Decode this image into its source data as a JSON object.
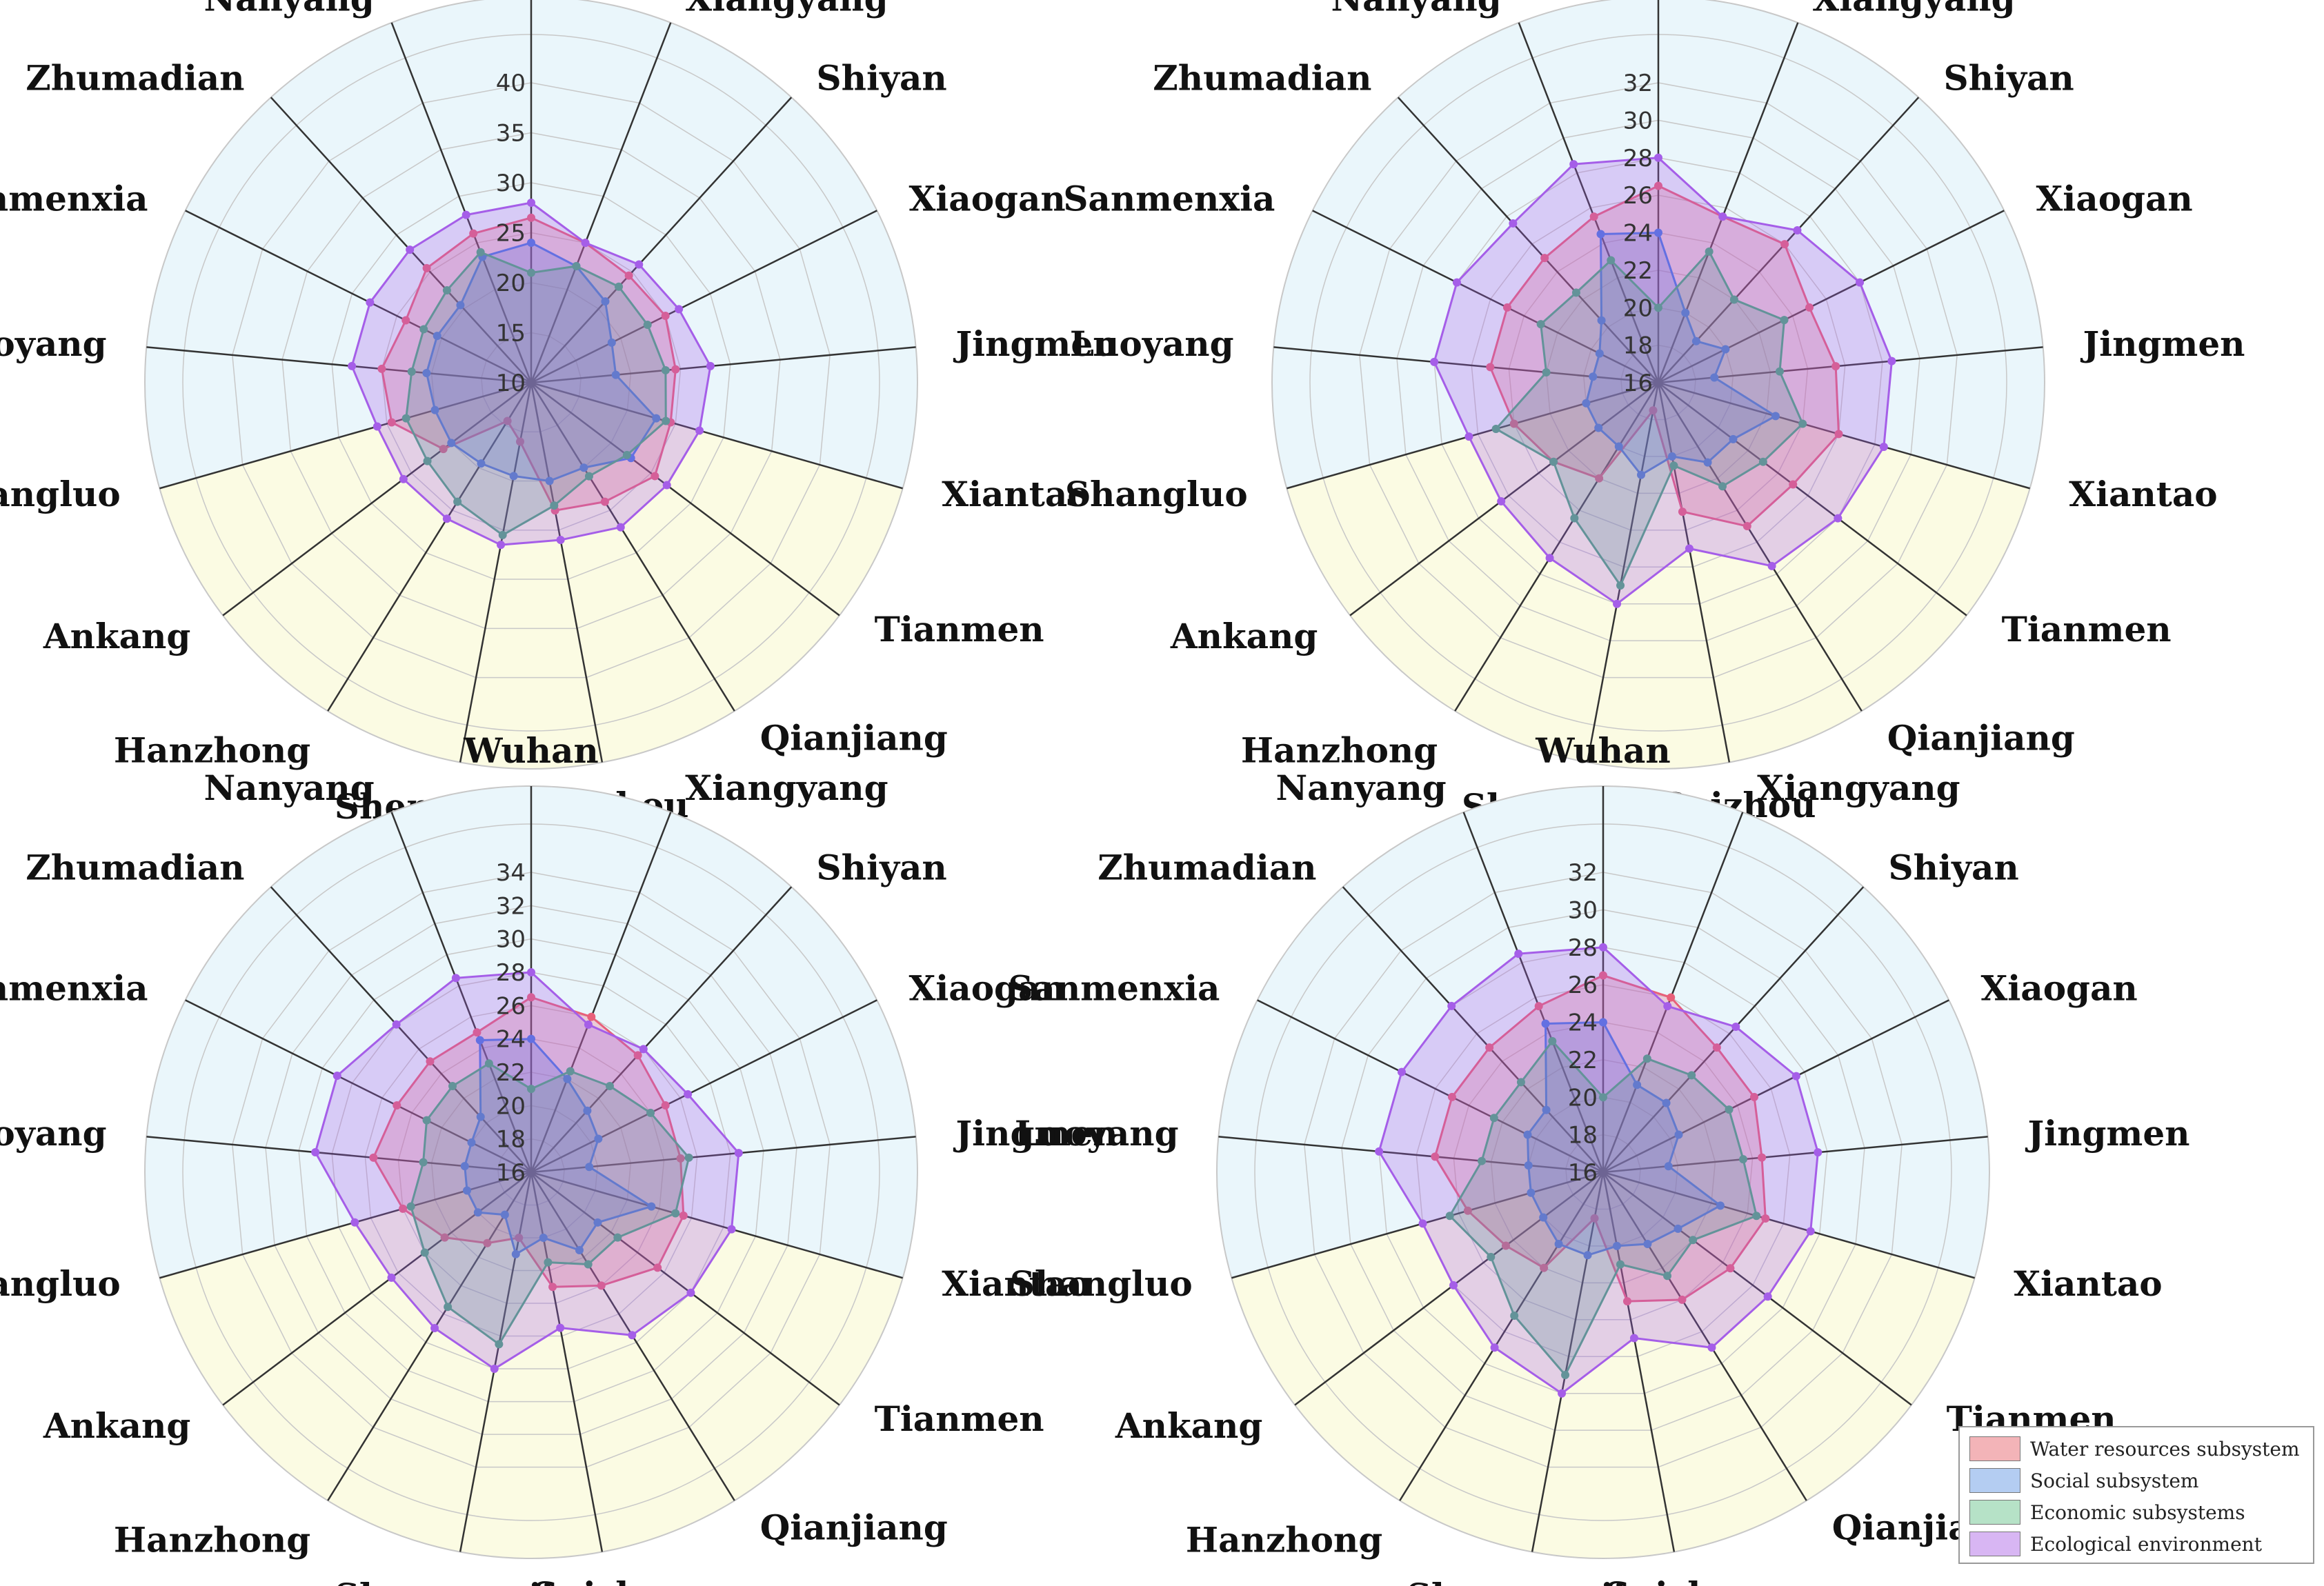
{
  "colors": {
    "water": "#e8607a",
    "social": "#4a78e0",
    "economic": "#4aa87a",
    "ecological": "#a55ee8",
    "blue_band": "#eaf6fb",
    "yellow_band": "#fbfbe3",
    "axis": "#333333",
    "grid": "#c8c8c8"
  },
  "legend": [
    {
      "name": "Water resources subsystem",
      "color": "#f3b4b8",
      "key": "water"
    },
    {
      "name": "Social subsystem",
      "color": "#b4cdf2",
      "key": "social"
    },
    {
      "name": "Economic subsystems",
      "color": "#b6e2c7",
      "key": "economic"
    },
    {
      "name": "Ecological environment",
      "color": "#d8b6f3",
      "key": "ecological"
    }
  ],
  "chart_data": [
    {
      "type": "radar",
      "categories": [
        "Wuhan",
        "Xiangyang",
        "Shiyan",
        "Xiaogan",
        "Jingmen",
        "Xiantao",
        "Tianmen",
        "Qianjiang",
        "Suizhou",
        "Shennongjia",
        "Hanzhong",
        "Ankang",
        "Shangluo",
        "Luoyang",
        "Sanmenxia",
        "Zhumadian",
        "Nanyang"
      ],
      "rlim": [
        10,
        40
      ],
      "ticks": [
        "10",
        "15",
        "20",
        "25",
        "30",
        "35",
        "40"
      ],
      "series": [
        {
          "name": "Water resources subsystem",
          "key": "water",
          "values": [
            26.5,
            25,
            24.5,
            25,
            24.5,
            24.5,
            25.5,
            24,
            23,
            16,
            14.5,
            21,
            24.5,
            25,
            24,
            25.5,
            26
          ]
        },
        {
          "name": "Social subsystem",
          "key": "social",
          "values": [
            24,
            22.5,
            21,
            19,
            18.5,
            23,
            22.5,
            20,
            20,
            19.5,
            19.5,
            20,
            20,
            20.5,
            20.5,
            20.5,
            23.5
          ]
        },
        {
          "name": "Economic subsystems",
          "key": "economic",
          "values": [
            21,
            22.5,
            23,
            23,
            23.5,
            24,
            22,
            21,
            22.5,
            25.5,
            24,
            23,
            23,
            22,
            22,
            22.5,
            24
          ]
        },
        {
          "name": "Ecological environment",
          "key": "ecological",
          "values": [
            28,
            25,
            26,
            26.5,
            28,
            27.5,
            27,
            27,
            26,
            26.5,
            26,
            26,
            26,
            28,
            28,
            28,
            28
          ]
        }
      ]
    },
    {
      "type": "radar",
      "categories": [
        "Wuhan",
        "Xiangyang",
        "Shiyan",
        "Xiaogan",
        "Jingmen",
        "Xiantao",
        "Tianmen",
        "Qianjiang",
        "Suizhou",
        "Shennongjia",
        "Hanzhong",
        "Ankang",
        "Shangluo",
        "Luoyang",
        "Sanmenxia",
        "Zhumadian",
        "Nanyang"
      ],
      "rlim": [
        16,
        32
      ],
      "ticks": [
        "16",
        "18",
        "20",
        "22",
        "24",
        "26",
        "28",
        "30",
        "32"
      ],
      "series": [
        {
          "name": "Water resources subsystem",
          "key": "water",
          "values": [
            26.5,
            25.5,
            26,
            25,
            25.5,
            26,
            25,
            25,
            23,
            17.5,
            22,
            23,
            24,
            25,
            25,
            25,
            25.5
          ]
        },
        {
          "name": "Social subsystem",
          "key": "social",
          "values": [
            24,
            20,
            19,
            20,
            19,
            22.5,
            21,
            21,
            20,
            21,
            20,
            20,
            20,
            19.5,
            19.5,
            20.5,
            24.5
          ]
        },
        {
          "name": "Economic subsystems",
          "key": "economic",
          "values": [
            20,
            23.5,
            22,
            23.5,
            22.5,
            24,
            23,
            22.5,
            20.5,
            27,
            24.5,
            23,
            25,
            22,
            23,
            22.5,
            23
          ]
        },
        {
          "name": "Ecological environment",
          "key": "ecological",
          "values": [
            28,
            25.5,
            27,
            28,
            28.5,
            28.5,
            28,
            27.5,
            25,
            28,
            27,
            26.5,
            26.5,
            28,
            28,
            27.5,
            28.5
          ]
        }
      ]
    },
    {
      "type": "radar",
      "categories": [
        "Wuhan",
        "Xiangyang",
        "Shiyan",
        "Xiaogan",
        "Jingmen",
        "Xiantao",
        "Tianmen",
        "Qianjiang",
        "Suizhou",
        "Shennongjia",
        "Hanzhong",
        "Ankang",
        "Shangluo",
        "Luoyang",
        "Sanmenxia",
        "Zhumadian",
        "Nanyang"
      ],
      "rlim": [
        16,
        34
      ],
      "ticks": [
        "16",
        "18",
        "20",
        "22",
        "24",
        "26",
        "28",
        "30",
        "32",
        "34"
      ],
      "series": [
        {
          "name": "Water resources subsystem",
          "key": "water",
          "values": [
            26.5,
            26,
            25.5,
            25,
            25,
            25.5,
            25.5,
            24,
            23,
            20,
            21,
            22.5,
            24,
            25.5,
            25,
            25,
            25
          ]
        },
        {
          "name": "Social subsystem",
          "key": "social",
          "values": [
            24,
            22,
            21,
            20.5,
            19.5,
            23.5,
            21,
            21.5,
            20,
            21,
            19,
            20,
            20,
            20,
            20,
            20.5,
            24.5
          ]
        },
        {
          "name": "Economic subsystems",
          "key": "economic",
          "values": [
            21,
            22.5,
            23,
            24,
            25.5,
            25,
            22.5,
            22.5,
            21.5,
            26.5,
            25.5,
            24,
            23.5,
            22.5,
            23,
            23,
            23
          ]
        },
        {
          "name": "Ecological environment",
          "key": "ecological",
          "values": [
            28,
            25.5,
            26,
            26.5,
            28.5,
            28.5,
            28,
            27.5,
            25.5,
            28,
            27,
            26.5,
            27,
            29,
            29,
            28,
            28.5
          ]
        }
      ]
    },
    {
      "type": "radar",
      "categories": [
        "Wuhan",
        "Xiangyang",
        "Shiyan",
        "Xiaogan",
        "Jingmen",
        "Xiantao",
        "Tianmen",
        "Qianjiang",
        "Suizhou",
        "Shennongjia",
        "Hanzhong",
        "Ankang",
        "Shangluo",
        "Luoyang",
        "Sanmenxia",
        "Zhumadian",
        "Nanyang"
      ],
      "rlim": [
        16,
        32
      ],
      "ticks": [
        "16",
        "18",
        "20",
        "22",
        "24",
        "26",
        "28",
        "30",
        "32"
      ],
      "series": [
        {
          "name": "Water resources subsystem",
          "key": "water",
          "values": [
            26.5,
            26,
            25,
            25,
            24.5,
            25,
            24.5,
            24,
            23,
            18.5,
            22,
            22.5,
            23.5,
            25,
            25,
            25,
            25.5
          ]
        },
        {
          "name": "Social subsystem",
          "key": "social",
          "values": [
            24,
            21,
            21,
            20.5,
            19.5,
            22.5,
            21,
            20.5,
            20,
            20.5,
            20.5,
            20,
            20,
            20,
            20.5,
            20.5,
            24.5
          ]
        },
        {
          "name": "Economic subsystems",
          "key": "economic",
          "values": [
            20,
            22.5,
            23,
            23.5,
            23.5,
            24.5,
            22,
            22.5,
            21,
            27,
            25,
            23.5,
            24.5,
            22.5,
            22.5,
            22.5,
            23.5
          ]
        },
        {
          "name": "Ecological environment",
          "key": "ecological",
          "values": [
            28,
            25.5,
            26.5,
            27.5,
            27.5,
            27.5,
            27,
            27,
            25,
            28,
            27,
            26,
            26,
            28,
            28,
            28,
            28.5
          ]
        }
      ]
    }
  ]
}
